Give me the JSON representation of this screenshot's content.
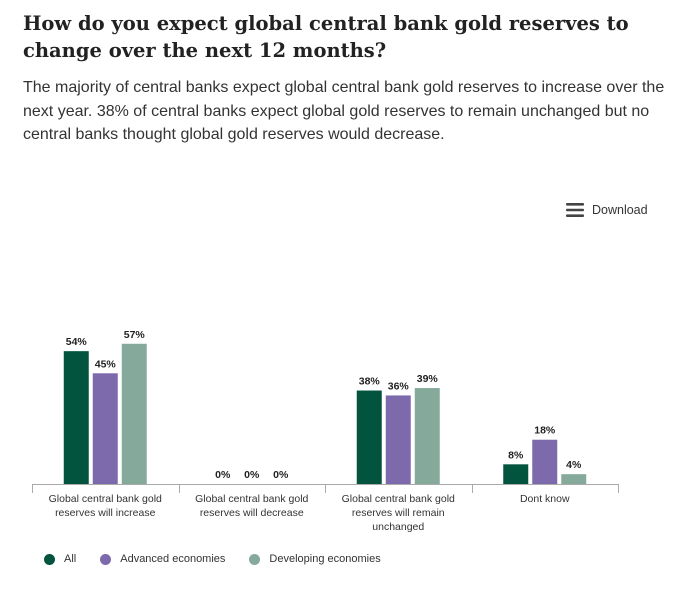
{
  "header": {
    "title": "How do you expect global central bank gold reserves to change over the next 12 months?",
    "subtitle": "The majority of central banks expect global central bank gold reserves to increase over the next year. 38% of central banks expect global gold reserves to remain unchanged but no central banks thought global gold reserves would decrease."
  },
  "download": {
    "label": "Download",
    "icon": "hamburger-menu-icon"
  },
  "chart_data": {
    "type": "bar",
    "categories": [
      [
        "Global central bank gold",
        "reserves will increase"
      ],
      [
        "Global central bank gold",
        "reserves will decrease"
      ],
      [
        "Global central bank gold",
        "reserves will remain",
        "unchanged"
      ],
      [
        "Dont know"
      ]
    ],
    "series": [
      {
        "name": "All",
        "color": "#03543f",
        "values": [
          54,
          0,
          38,
          8
        ],
        "labels": [
          "54%",
          "0%",
          "38%",
          "8%"
        ]
      },
      {
        "name": "Advanced economies",
        "color": "#7d6aad",
        "values": [
          45,
          0,
          36,
          18
        ],
        "labels": [
          "45%",
          "0%",
          "36%",
          "18%"
        ]
      },
      {
        "name": "Developing economies",
        "color": "#85a99a",
        "values": [
          57,
          0,
          39,
          4
        ],
        "labels": [
          "57%",
          "0%",
          "39%",
          "4%"
        ]
      }
    ],
    "ylim": [
      0,
      60
    ],
    "xlabel": "",
    "ylabel": "",
    "grid": false,
    "legend_position": "bottom-left"
  }
}
